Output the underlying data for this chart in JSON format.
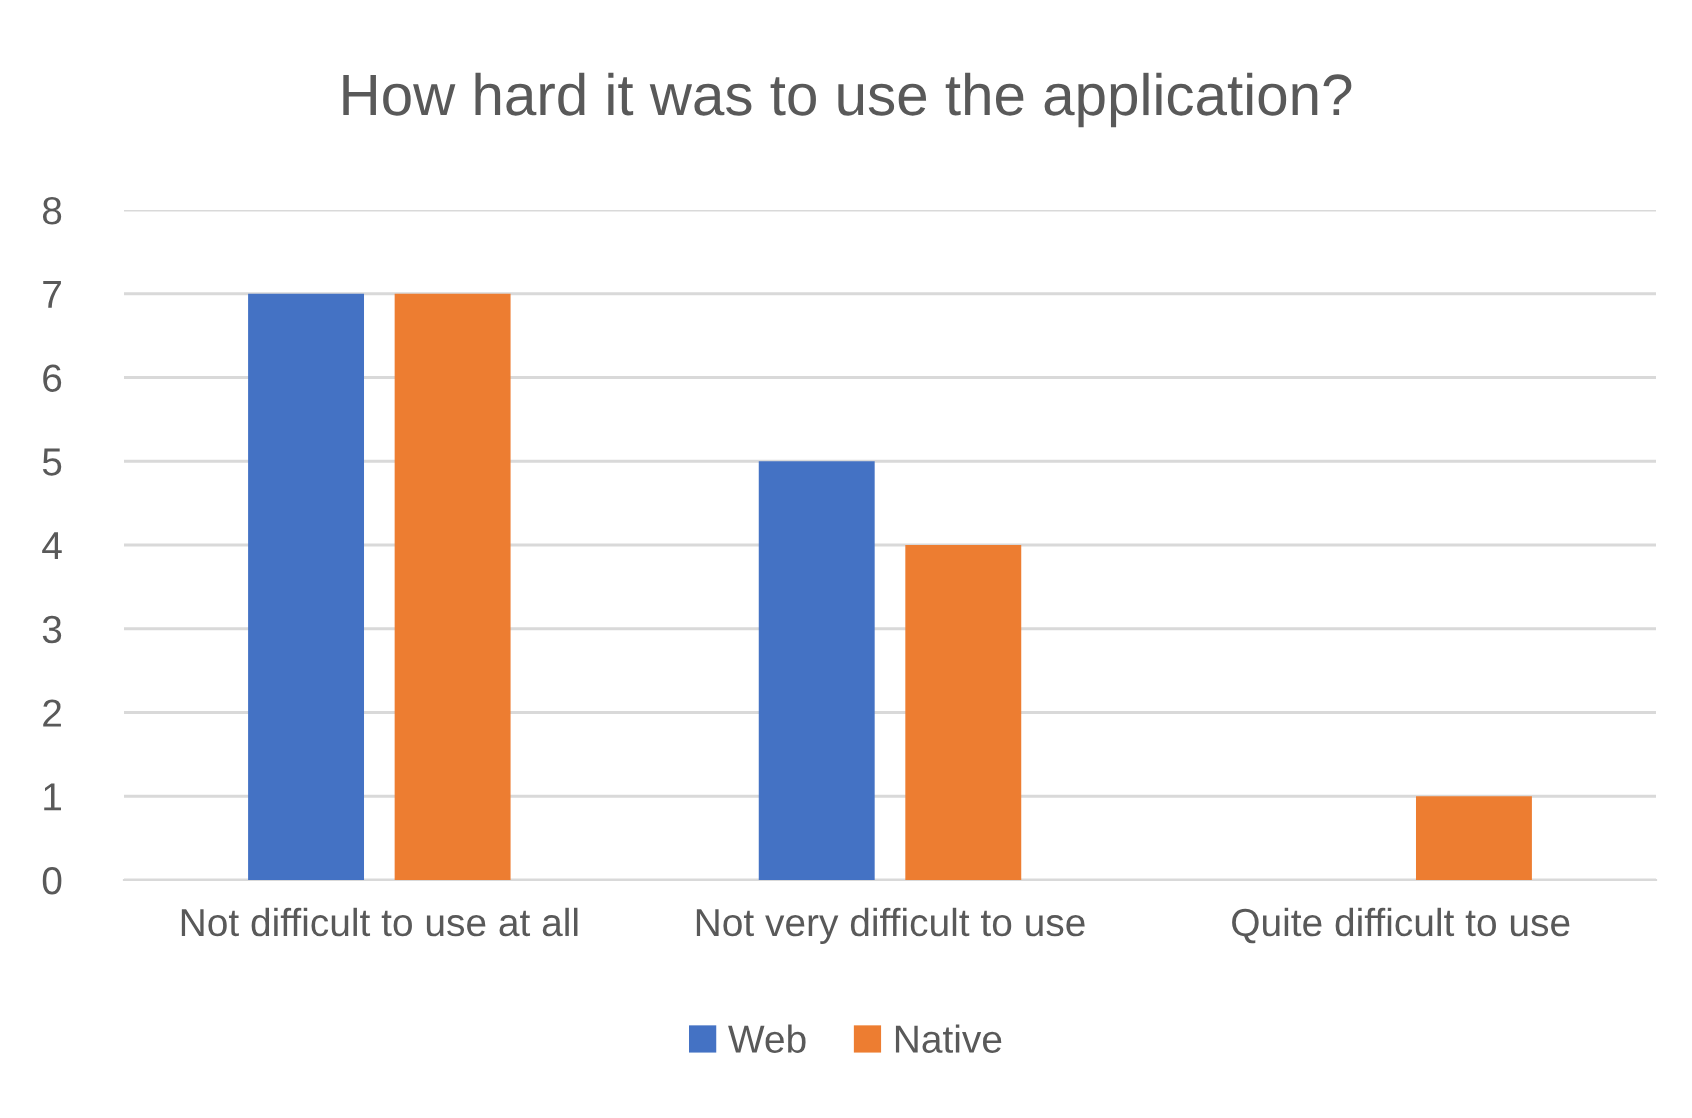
{
  "chart_data": {
    "type": "bar",
    "title": "How hard it was to use the application?",
    "categories": [
      "Not difficult to use at all",
      "Not very difficult to use",
      "Quite difficult to use"
    ],
    "series": [
      {
        "name": "Web",
        "color": "#4472c4",
        "values": [
          7,
          5,
          0
        ]
      },
      {
        "name": "Native",
        "color": "#ed7d31",
        "values": [
          7,
          4,
          1
        ]
      }
    ],
    "ylim": [
      0,
      8
    ],
    "yticks": [
      0,
      1,
      2,
      3,
      4,
      5,
      6,
      7,
      8
    ],
    "grid": "y",
    "legend": "bottom"
  }
}
